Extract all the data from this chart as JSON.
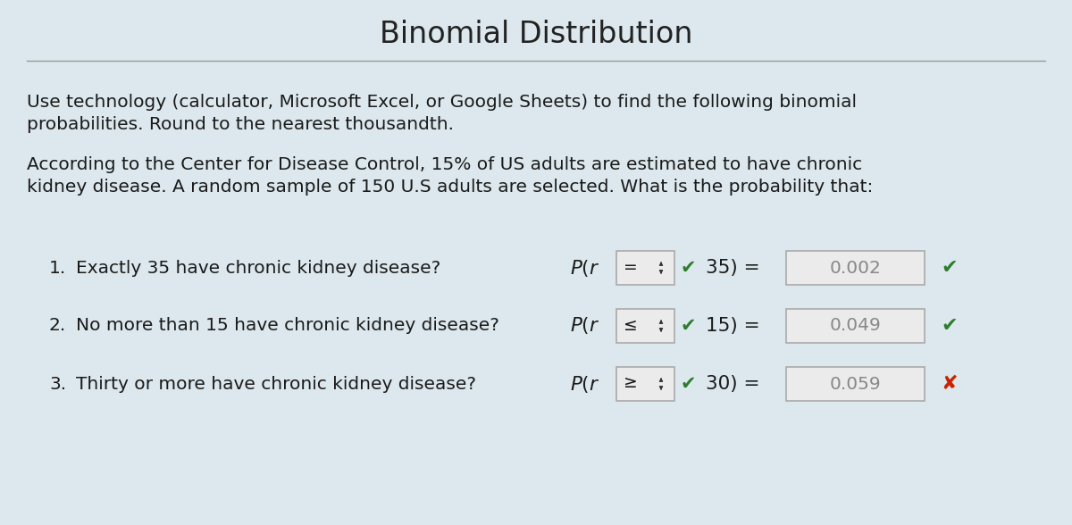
{
  "title": "Binomial Distribution",
  "bg_color": "#dce8ed",
  "title_color": "#222222",
  "title_fontsize": 24,
  "separator_color": "#999999",
  "text_color": "#1a1a1a",
  "body_text1_line1": "Use technology (calculator, Microsoft Excel, or Google Sheets) to find the following binomial",
  "body_text1_line2": "probabilities. Round to the nearest thousandth.",
  "body_text2_line1": "According to the Center for Disease Control, 15% of US adults are estimated to have chronic",
  "body_text2_line2": "kidney disease. A random sample of 150 U.S adults are selected. What is the probability that:",
  "questions": [
    {
      "number": "1.",
      "text": "Exactly 35 have chronic kidney disease?",
      "operator": "=",
      "value_text": "35) =",
      "answer": "0.002",
      "answer_correct": true
    },
    {
      "number": "2.",
      "text": "No more than 15 have chronic kidney disease?",
      "operator": "≤",
      "value_text": "15) =",
      "answer": "0.049",
      "answer_correct": true
    },
    {
      "number": "3.",
      "text": "Thirty or more have chronic kidney disease?",
      "operator": "≥",
      "value_text": "30) =",
      "answer": "0.059",
      "answer_correct": false
    }
  ],
  "box_bg": "#ebebeb",
  "box_border": "#aaaaaa",
  "green_color": "#2e7d2e",
  "red_color": "#cc2200",
  "dark_color": "#333333",
  "body_fontsize": 14.5,
  "question_fontsize": 14.5
}
